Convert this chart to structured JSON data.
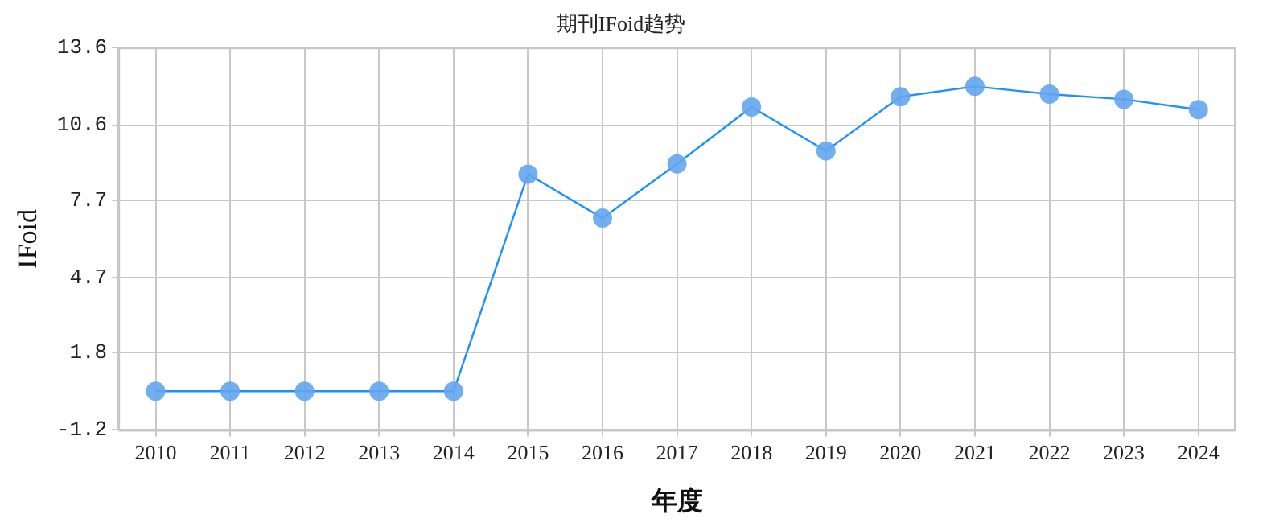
{
  "chart_data": {
    "type": "line",
    "title": "期刊IFoid趋势",
    "xlabel": "年度",
    "ylabel": "IFoid",
    "categories": [
      "2010",
      "2011",
      "2012",
      "2013",
      "2014",
      "2015",
      "2016",
      "2017",
      "2018",
      "2019",
      "2020",
      "2021",
      "2022",
      "2023",
      "2024"
    ],
    "series": [
      {
        "color": "#1e90ff",
        "values": [
          0.3,
          0.3,
          0.3,
          0.3,
          0.3,
          8.7,
          7.0,
          9.1,
          11.3,
          9.6,
          11.7,
          12.1,
          11.8,
          11.6,
          11.2
        ]
      }
    ],
    "ylim": [
      -1.2,
      13.6
    ],
    "yticks": [
      -1.2,
      1.8,
      4.7,
      7.7,
      10.6,
      13.6
    ],
    "grid": true,
    "legend": false,
    "marker": "circle",
    "line_style": "solid"
  }
}
